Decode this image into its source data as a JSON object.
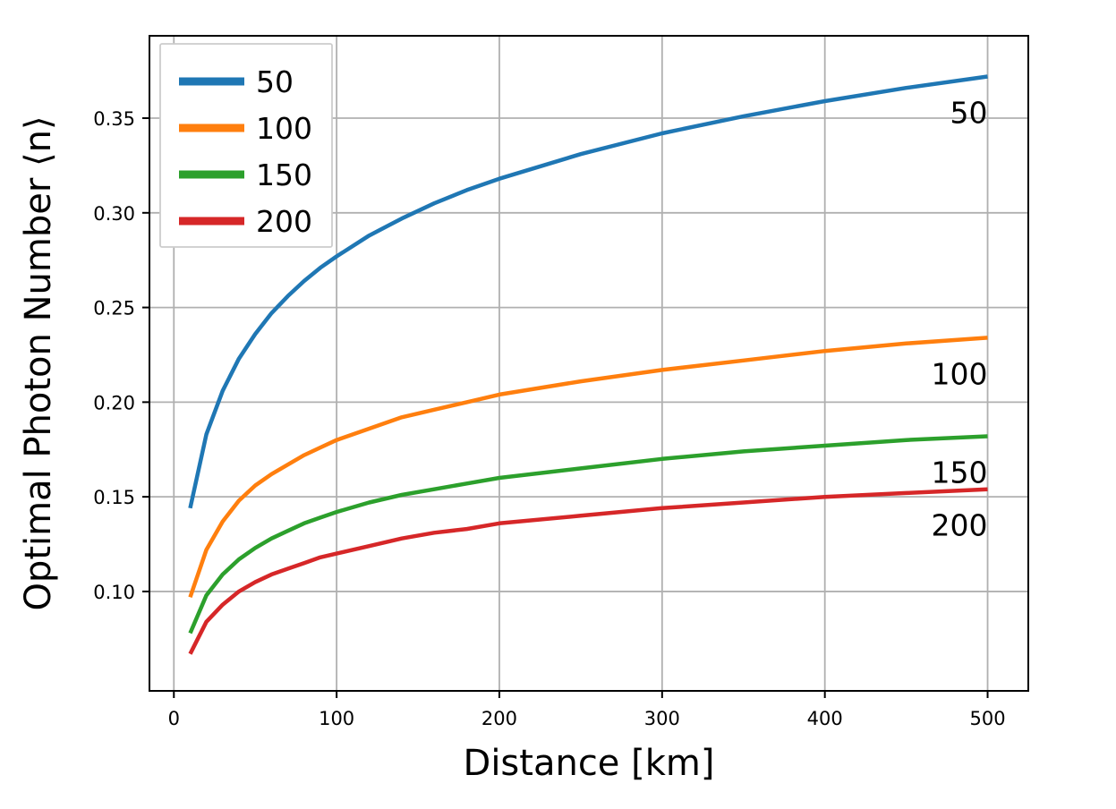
{
  "chart_data": {
    "type": "line",
    "title": "",
    "xlabel": "Distance [km]",
    "ylabel": "Optimal Photon Number ⟨n⟩",
    "xlim": [
      -15,
      525
    ],
    "ylim": [
      0.0475,
      0.3935
    ],
    "xticks": [
      0,
      100,
      200,
      300,
      400,
      500
    ],
    "xtick_labels": [
      "0",
      "100",
      "200",
      "300",
      "400",
      "500"
    ],
    "yticks": [
      0.1,
      0.15,
      0.2,
      0.25,
      0.3,
      0.35
    ],
    "ytick_labels": [
      "0.10",
      "0.15",
      "0.20",
      "0.25",
      "0.30",
      "0.35"
    ],
    "grid": true,
    "legend_position": "upper-left",
    "x": [
      10,
      20,
      30,
      40,
      50,
      60,
      70,
      80,
      90,
      100,
      120,
      140,
      160,
      180,
      200,
      250,
      300,
      350,
      400,
      450,
      500
    ],
    "series": [
      {
        "name": "50",
        "color": "#1f77b4",
        "annotation": "50",
        "values": [
          0.144,
          0.183,
          0.206,
          0.223,
          0.236,
          0.247,
          0.256,
          0.264,
          0.271,
          0.277,
          0.288,
          0.297,
          0.305,
          0.312,
          0.318,
          0.331,
          0.342,
          0.351,
          0.359,
          0.366,
          0.372
        ]
      },
      {
        "name": "100",
        "color": "#ff7f0e",
        "annotation": "100",
        "values": [
          0.097,
          0.122,
          0.137,
          0.148,
          0.156,
          0.162,
          0.167,
          0.172,
          0.176,
          0.18,
          0.186,
          0.192,
          0.196,
          0.2,
          0.204,
          0.211,
          0.217,
          0.222,
          0.227,
          0.231,
          0.234
        ]
      },
      {
        "name": "150",
        "color": "#2ca02c",
        "annotation": "150",
        "values": [
          0.078,
          0.098,
          0.109,
          0.117,
          0.123,
          0.128,
          0.132,
          0.136,
          0.139,
          0.142,
          0.147,
          0.151,
          0.154,
          0.157,
          0.16,
          0.165,
          0.17,
          0.174,
          0.177,
          0.18,
          0.182
        ]
      },
      {
        "name": "200",
        "color": "#d62728",
        "annotation": "200",
        "values": [
          0.067,
          0.084,
          0.093,
          0.1,
          0.105,
          0.109,
          0.112,
          0.115,
          0.118,
          0.12,
          0.124,
          0.128,
          0.131,
          0.133,
          0.136,
          0.14,
          0.144,
          0.147,
          0.15,
          0.152,
          0.154
        ]
      }
    ]
  }
}
